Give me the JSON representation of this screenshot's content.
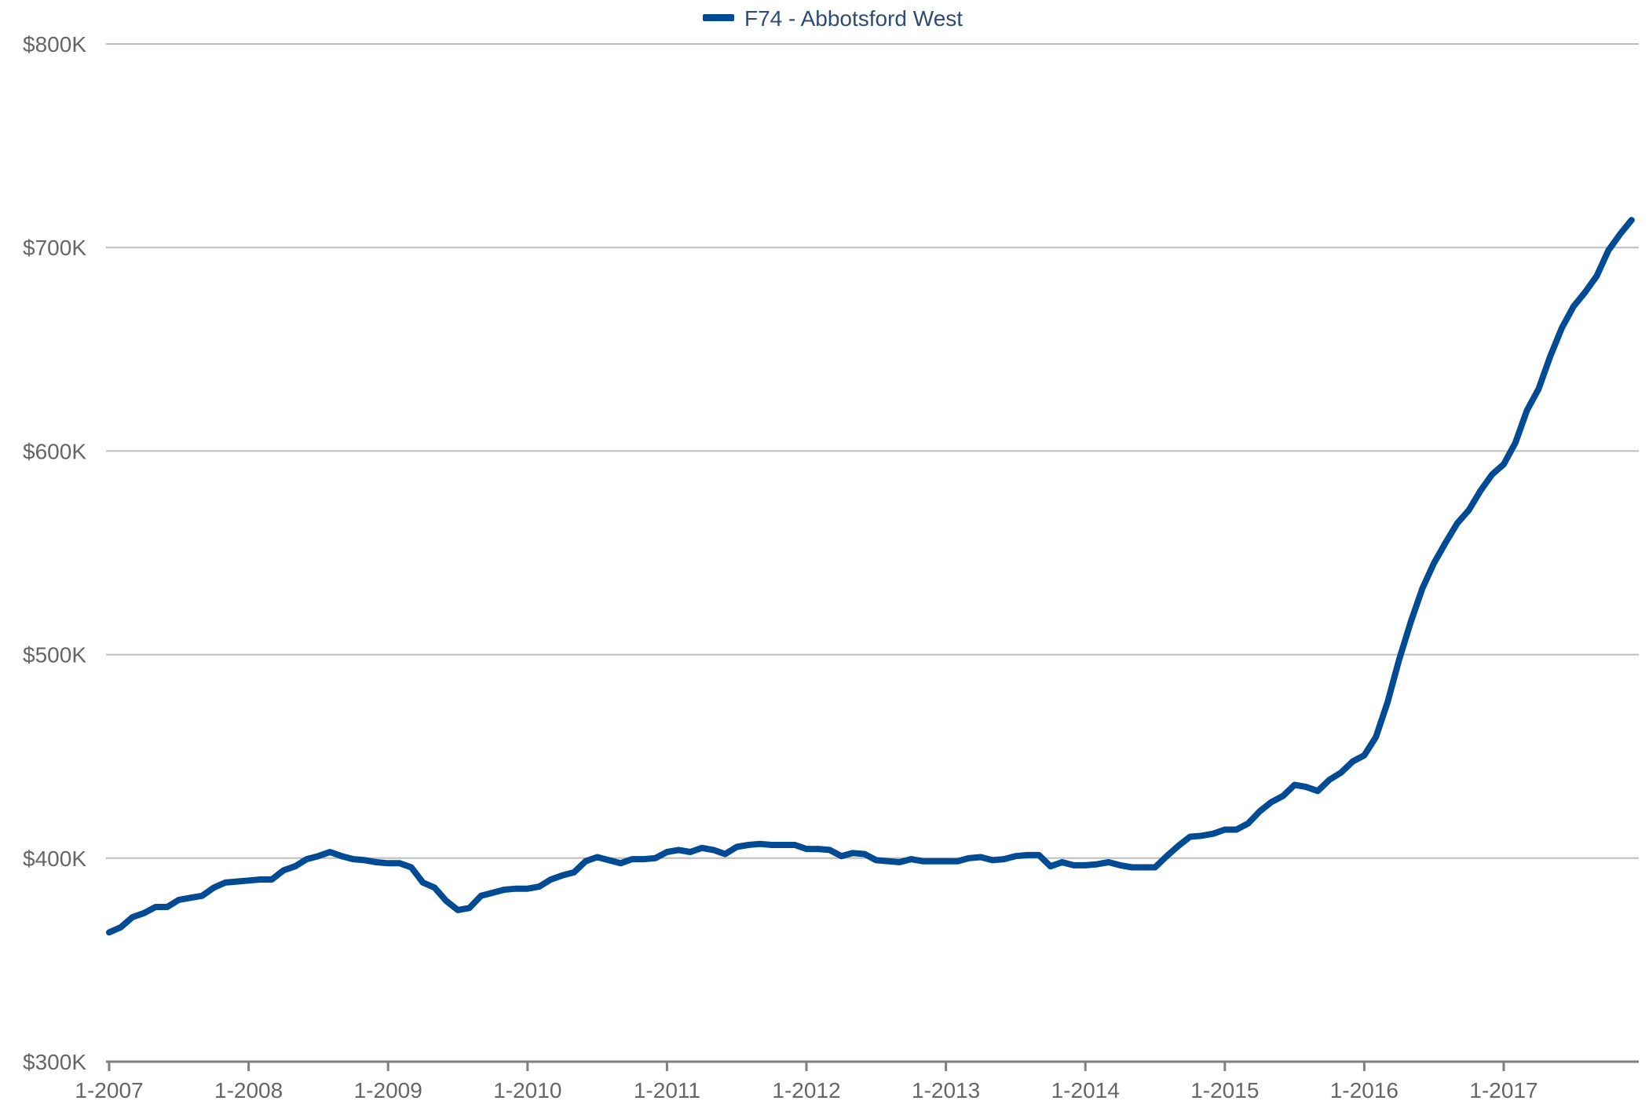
{
  "colors": {
    "series": "#004b93",
    "grid": "#bdbdbd",
    "axis": "#808080",
    "label": "#666666",
    "legend_text": "#2f4b73"
  },
  "legend": {
    "position": "top-center",
    "label": "F74 - Abbotsford West"
  },
  "chart_data": {
    "type": "line",
    "title": "",
    "xlabel": "",
    "ylabel": "",
    "grid": true,
    "xlim": [
      "2007-01",
      "2017-12"
    ],
    "ylim": [
      300000,
      800000
    ],
    "y_ticks": [
      {
        "value": 300000,
        "label": "$300K"
      },
      {
        "value": 400000,
        "label": "$400K"
      },
      {
        "value": 500000,
        "label": "$500K"
      },
      {
        "value": 600000,
        "label": "$600K"
      },
      {
        "value": 700000,
        "label": "$700K"
      },
      {
        "value": 800000,
        "label": "$800K"
      }
    ],
    "x_ticks": [
      {
        "value": "2007-01",
        "label": "1-2007"
      },
      {
        "value": "2008-01",
        "label": "1-2008"
      },
      {
        "value": "2009-01",
        "label": "1-2009"
      },
      {
        "value": "2010-01",
        "label": "1-2010"
      },
      {
        "value": "2011-01",
        "label": "1-2011"
      },
      {
        "value": "2012-01",
        "label": "1-2012"
      },
      {
        "value": "2013-01",
        "label": "1-2013"
      },
      {
        "value": "2014-01",
        "label": "1-2014"
      },
      {
        "value": "2015-01",
        "label": "1-2015"
      },
      {
        "value": "2016-01",
        "label": "1-2016"
      },
      {
        "value": "2017-01",
        "label": "1-2017"
      }
    ],
    "series": [
      {
        "name": "F74 - Abbotsford West",
        "points": [
          [
            "2007-01",
            363500
          ],
          [
            "2007-02",
            366000
          ],
          [
            "2007-03",
            371000
          ],
          [
            "2007-04",
            373000
          ],
          [
            "2007-05",
            376000
          ],
          [
            "2007-06",
            376000
          ],
          [
            "2007-07",
            379500
          ],
          [
            "2007-08",
            380500
          ],
          [
            "2007-09",
            381500
          ],
          [
            "2007-10",
            385500
          ],
          [
            "2007-11",
            388000
          ],
          [
            "2007-12",
            388500
          ],
          [
            "2008-01",
            389000
          ],
          [
            "2008-02",
            389500
          ],
          [
            "2008-03",
            389500
          ],
          [
            "2008-04",
            394000
          ],
          [
            "2008-05",
            396000
          ],
          [
            "2008-06",
            399500
          ],
          [
            "2008-07",
            401000
          ],
          [
            "2008-08",
            403000
          ],
          [
            "2008-09",
            401000
          ],
          [
            "2008-10",
            399500
          ],
          [
            "2008-11",
            399000
          ],
          [
            "2008-12",
            398000
          ],
          [
            "2009-01",
            397500
          ],
          [
            "2009-02",
            397500
          ],
          [
            "2009-03",
            395500
          ],
          [
            "2009-04",
            388000
          ],
          [
            "2009-05",
            385500
          ],
          [
            "2009-06",
            379000
          ],
          [
            "2009-07",
            374500
          ],
          [
            "2009-08",
            375500
          ],
          [
            "2009-09",
            381500
          ],
          [
            "2009-10",
            383000
          ],
          [
            "2009-11",
            384500
          ],
          [
            "2009-12",
            385000
          ],
          [
            "2010-01",
            385000
          ],
          [
            "2010-02",
            386000
          ],
          [
            "2010-03",
            389500
          ],
          [
            "2010-04",
            391500
          ],
          [
            "2010-05",
            393000
          ],
          [
            "2010-06",
            398500
          ],
          [
            "2010-07",
            400500
          ],
          [
            "2010-08",
            399000
          ],
          [
            "2010-09",
            397500
          ],
          [
            "2010-10",
            399500
          ],
          [
            "2010-11",
            399500
          ],
          [
            "2010-12",
            400000
          ],
          [
            "2011-01",
            403000
          ],
          [
            "2011-02",
            404000
          ],
          [
            "2011-03",
            403000
          ],
          [
            "2011-04",
            405000
          ],
          [
            "2011-05",
            404000
          ],
          [
            "2011-06",
            402000
          ],
          [
            "2011-07",
            405500
          ],
          [
            "2011-08",
            406500
          ],
          [
            "2011-09",
            407000
          ],
          [
            "2011-10",
            406500
          ],
          [
            "2011-11",
            406500
          ],
          [
            "2011-12",
            406500
          ],
          [
            "2012-01",
            404500
          ],
          [
            "2012-02",
            404500
          ],
          [
            "2012-03",
            404000
          ],
          [
            "2012-04",
            401000
          ],
          [
            "2012-05",
            402500
          ],
          [
            "2012-06",
            402000
          ],
          [
            "2012-07",
            399000
          ],
          [
            "2012-08",
            398500
          ],
          [
            "2012-09",
            398000
          ],
          [
            "2012-10",
            399500
          ],
          [
            "2012-11",
            398500
          ],
          [
            "2012-12",
            398500
          ],
          [
            "2013-01",
            398500
          ],
          [
            "2013-02",
            398500
          ],
          [
            "2013-03",
            400000
          ],
          [
            "2013-04",
            400500
          ],
          [
            "2013-05",
            399000
          ],
          [
            "2013-06",
            399500
          ],
          [
            "2013-07",
            401000
          ],
          [
            "2013-08",
            401500
          ],
          [
            "2013-09",
            401500
          ],
          [
            "2013-10",
            396000
          ],
          [
            "2013-11",
            398000
          ],
          [
            "2013-12",
            396500
          ],
          [
            "2014-01",
            396500
          ],
          [
            "2014-02",
            397000
          ],
          [
            "2014-03",
            398000
          ],
          [
            "2014-04",
            396500
          ],
          [
            "2014-05",
            395500
          ],
          [
            "2014-06",
            395500
          ],
          [
            "2014-07",
            395500
          ],
          [
            "2014-08",
            401000
          ],
          [
            "2014-09",
            406000
          ],
          [
            "2014-10",
            410500
          ],
          [
            "2014-11",
            411000
          ],
          [
            "2014-12",
            412000
          ],
          [
            "2015-01",
            414000
          ],
          [
            "2015-02",
            414000
          ],
          [
            "2015-03",
            417000
          ],
          [
            "2015-04",
            423000
          ],
          [
            "2015-05",
            427500
          ],
          [
            "2015-06",
            430500
          ],
          [
            "2015-07",
            436000
          ],
          [
            "2015-08",
            435000
          ],
          [
            "2015-09",
            433000
          ],
          [
            "2015-10",
            438500
          ],
          [
            "2015-11",
            442000
          ],
          [
            "2015-12",
            447500
          ],
          [
            "2016-01",
            450500
          ],
          [
            "2016-02",
            459500
          ],
          [
            "2016-03",
            476500
          ],
          [
            "2016-04",
            497500
          ],
          [
            "2016-05",
            516000
          ],
          [
            "2016-06",
            532500
          ],
          [
            "2016-07",
            545000
          ],
          [
            "2016-08",
            555000
          ],
          [
            "2016-09",
            564500
          ],
          [
            "2016-10",
            571000
          ],
          [
            "2016-11",
            580500
          ],
          [
            "2016-12",
            588500
          ],
          [
            "2017-01",
            593500
          ],
          [
            "2017-02",
            604000
          ],
          [
            "2017-03",
            620000
          ],
          [
            "2017-04",
            630500
          ],
          [
            "2017-05",
            646500
          ],
          [
            "2017-06",
            660500
          ],
          [
            "2017-07",
            671000
          ],
          [
            "2017-08",
            678000
          ],
          [
            "2017-09",
            686000
          ],
          [
            "2017-10",
            698500
          ],
          [
            "2017-11",
            706500
          ],
          [
            "2017-12",
            713500
          ]
        ]
      }
    ]
  }
}
